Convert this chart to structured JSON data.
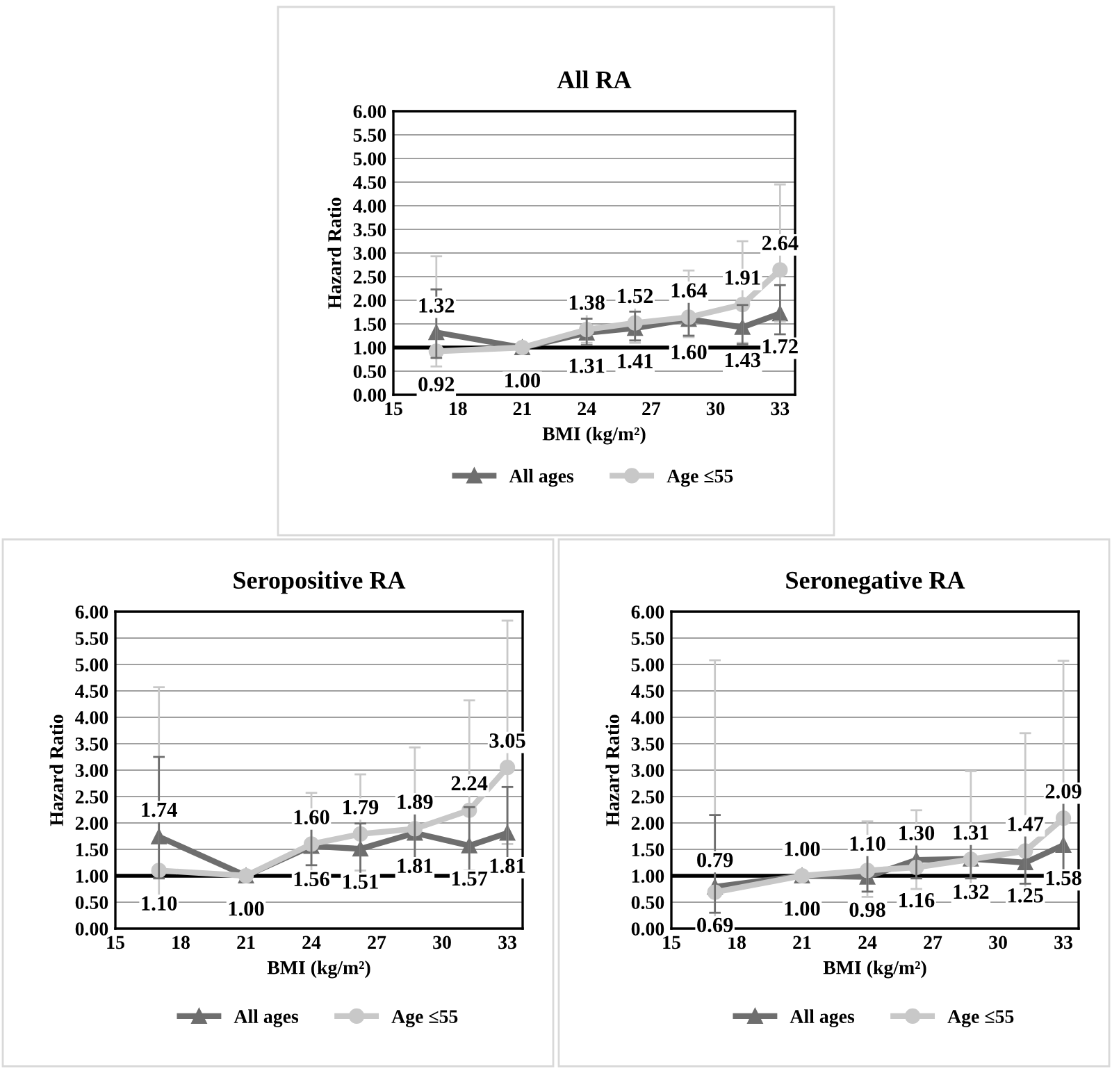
{
  "chart_data": [
    {
      "type": "line",
      "title": "All RA",
      "xlabel": "BMI (kg/m²)",
      "ylabel": "Hazard Ratio",
      "x": [
        17,
        21,
        24,
        26.25,
        28.75,
        31.25,
        33
      ],
      "xlim": [
        15,
        33.7
      ],
      "xticks": [
        15,
        18,
        21,
        24,
        27,
        30,
        33
      ],
      "ylim": [
        0,
        6
      ],
      "yticks": [
        {
          "value": 0,
          "label": "0.00"
        },
        {
          "value": 0.5,
          "label": "0.50"
        },
        {
          "value": 1,
          "label": "1.00"
        },
        {
          "value": 1.5,
          "label": "1.50"
        },
        {
          "value": 2,
          "label": "2.00"
        },
        {
          "value": 2.5,
          "label": "2.50"
        },
        {
          "value": 3,
          "label": "3.00"
        },
        {
          "value": 3.5,
          "label": "3.50"
        },
        {
          "value": 4,
          "label": "4.00"
        },
        {
          "value": 4.5,
          "label": "4.50"
        },
        {
          "value": 5,
          "label": "5.00"
        },
        {
          "value": 5.5,
          "label": "5.50"
        },
        {
          "value": 6,
          "label": "6.00"
        }
      ],
      "grid": "y",
      "legend": "bottom",
      "ref_lines": [
        {
          "axis": "y",
          "value": 1,
          "color": "#000000"
        }
      ],
      "series": [
        {
          "name": "All ages",
          "color": "#6e6e6e",
          "marker": "triangle",
          "values": [
            1.32,
            1.0,
            1.31,
            1.41,
            1.6,
            1.43,
            1.72
          ],
          "errors": [
            [
              0.78,
              2.23
            ],
            null,
            [
              1.05,
              1.61
            ],
            [
              1.15,
              1.76
            ],
            [
              1.25,
              2.0
            ],
            [
              1.07,
              1.9
            ],
            [
              1.28,
              2.32
            ]
          ],
          "value_labels": [
            "1.32",
            "1.00",
            "1.31",
            "1.41",
            "1.60",
            "1.43",
            "1.72"
          ]
        },
        {
          "name": "Age ≤55",
          "color": "#c8c8c8",
          "marker": "circle",
          "values": [
            0.92,
            1.0,
            1.38,
            1.52,
            1.64,
            1.91,
            2.64
          ],
          "errors": [
            [
              0.6,
              2.93
            ],
            null,
            [
              1.1,
              1.75
            ],
            [
              1.1,
              2.23
            ],
            [
              1.22,
              2.63
            ],
            [
              1.1,
              3.25
            ],
            [
              1.55,
              4.45
            ]
          ],
          "value_labels": [
            "0.92",
            null,
            "1.38",
            "1.52",
            "1.64",
            "1.91",
            "2.64"
          ]
        }
      ]
    },
    {
      "type": "line",
      "title": "Seropositive RA",
      "xlabel": "BMI (kg/m²)",
      "ylabel": "Hazard Ratio",
      "x": [
        17,
        21,
        24,
        26.25,
        28.75,
        31.25,
        33
      ],
      "xlim": [
        15,
        33.7
      ],
      "xticks": [
        15,
        18,
        21,
        24,
        27,
        30,
        33
      ],
      "ylim": [
        0,
        6
      ],
      "yticks": [
        {
          "value": 0,
          "label": "0.00"
        },
        {
          "value": 0.5,
          "label": "0.50"
        },
        {
          "value": 1,
          "label": "1.00"
        },
        {
          "value": 1.5,
          "label": "1.50"
        },
        {
          "value": 2,
          "label": "2.00"
        },
        {
          "value": 2.5,
          "label": "2.50"
        },
        {
          "value": 3,
          "label": "3.00"
        },
        {
          "value": 3.5,
          "label": "3.50"
        },
        {
          "value": 4,
          "label": "4.00"
        },
        {
          "value": 4.5,
          "label": "4.50"
        },
        {
          "value": 5,
          "label": "5.00"
        },
        {
          "value": 5.5,
          "label": "5.50"
        },
        {
          "value": 6,
          "label": "6.00"
        }
      ],
      "grid": "y",
      "legend": "bottom",
      "ref_lines": [
        {
          "axis": "y",
          "value": 1,
          "color": "#000000"
        }
      ],
      "series": [
        {
          "name": "All ages",
          "color": "#6e6e6e",
          "marker": "triangle",
          "values": [
            1.74,
            1.0,
            1.56,
            1.51,
            1.81,
            1.57,
            1.81
          ],
          "errors": [
            [
              0.95,
              3.25
            ],
            null,
            [
              1.2,
              2.02
            ],
            [
              0.95,
              1.99
            ],
            [
              1.05,
              2.3
            ],
            [
              1.1,
              2.3
            ],
            [
              1.25,
              2.68
            ]
          ],
          "value_labels": [
            "1.74",
            "1.00",
            "1.56",
            "1.51",
            "1.81",
            "1.57",
            "1.81"
          ]
        },
        {
          "name": "Age ≤55",
          "color": "#c8c8c8",
          "marker": "circle",
          "values": [
            1.1,
            1.0,
            1.6,
            1.79,
            1.89,
            2.24,
            3.05
          ],
          "errors": [
            [
              0.27,
              4.57
            ],
            null,
            [
              1.0,
              2.57
            ],
            [
              1.1,
              2.92
            ],
            [
              1.05,
              3.43
            ],
            [
              1.1,
              4.32
            ],
            [
              1.6,
              5.83
            ]
          ],
          "value_labels": [
            "1.10",
            null,
            "1.60",
            "1.79",
            "1.89",
            "2.24",
            "3.05"
          ]
        }
      ]
    },
    {
      "type": "line",
      "title": "Seronegative RA",
      "xlabel": "BMI (kg/m²)",
      "ylabel": "Hazard Ratio",
      "x": [
        17,
        21,
        24,
        26.25,
        28.75,
        31.25,
        33
      ],
      "xlim": [
        15,
        33.7
      ],
      "xticks": [
        15,
        18,
        21,
        24,
        27,
        30,
        33
      ],
      "ylim": [
        0,
        6
      ],
      "yticks": [
        {
          "value": 0,
          "label": "0.00"
        },
        {
          "value": 0.5,
          "label": "0.50"
        },
        {
          "value": 1,
          "label": "1.00"
        },
        {
          "value": 1.5,
          "label": "1.50"
        },
        {
          "value": 2,
          "label": "2.00"
        },
        {
          "value": 2.5,
          "label": "2.50"
        },
        {
          "value": 3,
          "label": "3.00"
        },
        {
          "value": 3.5,
          "label": "3.50"
        },
        {
          "value": 4,
          "label": "4.00"
        },
        {
          "value": 4.5,
          "label": "4.50"
        },
        {
          "value": 5,
          "label": "5.00"
        },
        {
          "value": 5.5,
          "label": "5.50"
        },
        {
          "value": 6,
          "label": "6.00"
        }
      ],
      "grid": "y",
      "legend": "bottom",
      "ref_lines": [
        {
          "axis": "y",
          "value": 1,
          "color": "#000000"
        }
      ],
      "series": [
        {
          "name": "All ages",
          "color": "#6e6e6e",
          "marker": "triangle",
          "values": [
            0.79,
            1.0,
            0.98,
            1.3,
            1.32,
            1.25,
            1.58
          ],
          "errors": [
            [
              0.3,
              2.15
            ],
            null,
            [
              0.7,
              1.4
            ],
            [
              0.95,
              1.75
            ],
            [
              0.95,
              1.8
            ],
            [
              0.85,
              1.85
            ],
            [
              0.88,
              2.55
            ]
          ],
          "value_labels": [
            "0.79",
            "1.00",
            "0.98",
            "1.30",
            "1.32",
            "1.25",
            "1.58"
          ]
        },
        {
          "name": "Age ≤55",
          "color": "#c8c8c8",
          "marker": "circle",
          "values": [
            0.69,
            1.0,
            1.1,
            1.16,
            1.31,
            1.47,
            2.09
          ],
          "errors": [
            [
              0.1,
              5.08
            ],
            null,
            [
              0.6,
              2.03
            ],
            [
              0.75,
              2.24
            ],
            [
              0.6,
              2.98
            ],
            [
              0.6,
              3.7
            ],
            [
              0.88,
              5.07
            ]
          ],
          "value_labels": [
            "0.69",
            "1.00",
            "1.10",
            "1.16",
            "1.31",
            "1.47",
            "2.09"
          ]
        }
      ]
    }
  ]
}
